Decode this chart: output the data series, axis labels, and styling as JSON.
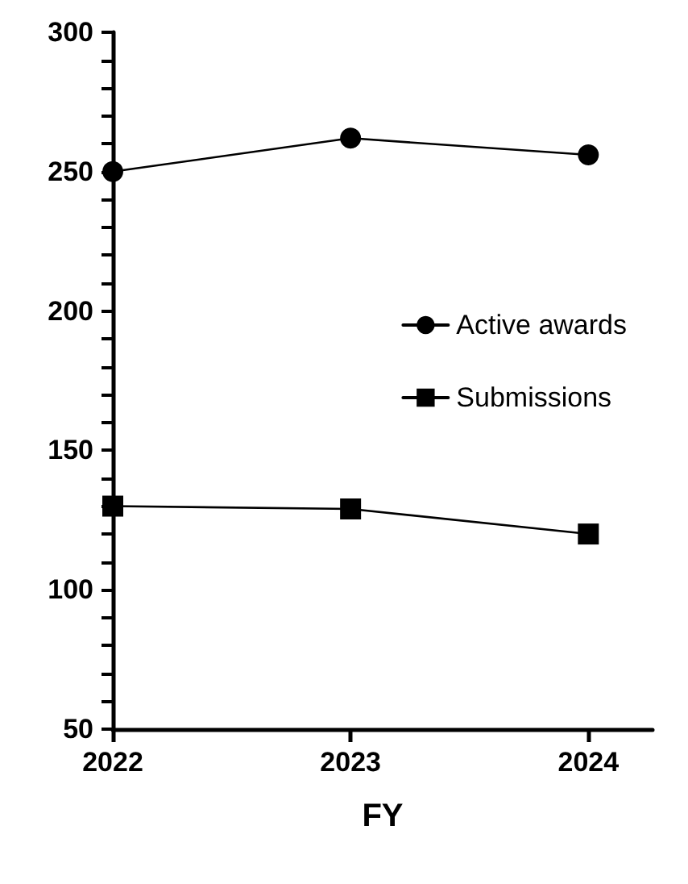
{
  "chart_data": {
    "type": "line",
    "xlabel": "FY",
    "x": [
      2022,
      2023,
      2024
    ],
    "xlim": [
      2022,
      2024.27
    ],
    "xticks": [
      2022,
      2023,
      2024
    ],
    "ylim": [
      50,
      300
    ],
    "yticks": [
      50,
      {
        "value": 60,
        "label": null
      },
      {
        "value": 70,
        "label": null
      },
      {
        "value": 80,
        "label": null
      },
      {
        "value": 90,
        "label": null
      },
      100,
      {
        "value": 110,
        "label": null
      },
      {
        "value": 120,
        "label": null
      },
      {
        "value": 130,
        "label": null
      },
      {
        "value": 140,
        "label": null
      },
      150,
      {
        "value": 160,
        "label": null
      },
      {
        "value": 170,
        "label": null
      },
      {
        "value": 180,
        "label": null
      },
      {
        "value": 190,
        "label": null
      },
      200,
      {
        "value": 210,
        "label": null
      },
      {
        "value": 220,
        "label": null
      },
      {
        "value": 230,
        "label": null
      },
      {
        "value": 240,
        "label": null
      },
      250,
      {
        "value": 260,
        "label": null
      },
      {
        "value": 270,
        "label": null
      },
      {
        "value": 280,
        "label": null
      },
      {
        "value": 290,
        "label": null
      },
      300
    ],
    "series": [
      {
        "name": "Active awards",
        "color": "#000000",
        "marker": "circle",
        "values": [
          250,
          262,
          256
        ]
      },
      {
        "name": "Submissions",
        "color": "#000000",
        "marker": "square",
        "values": [
          130,
          129,
          120
        ]
      }
    ],
    "legend": "right",
    "grid": false,
    "line_style": "solid"
  }
}
